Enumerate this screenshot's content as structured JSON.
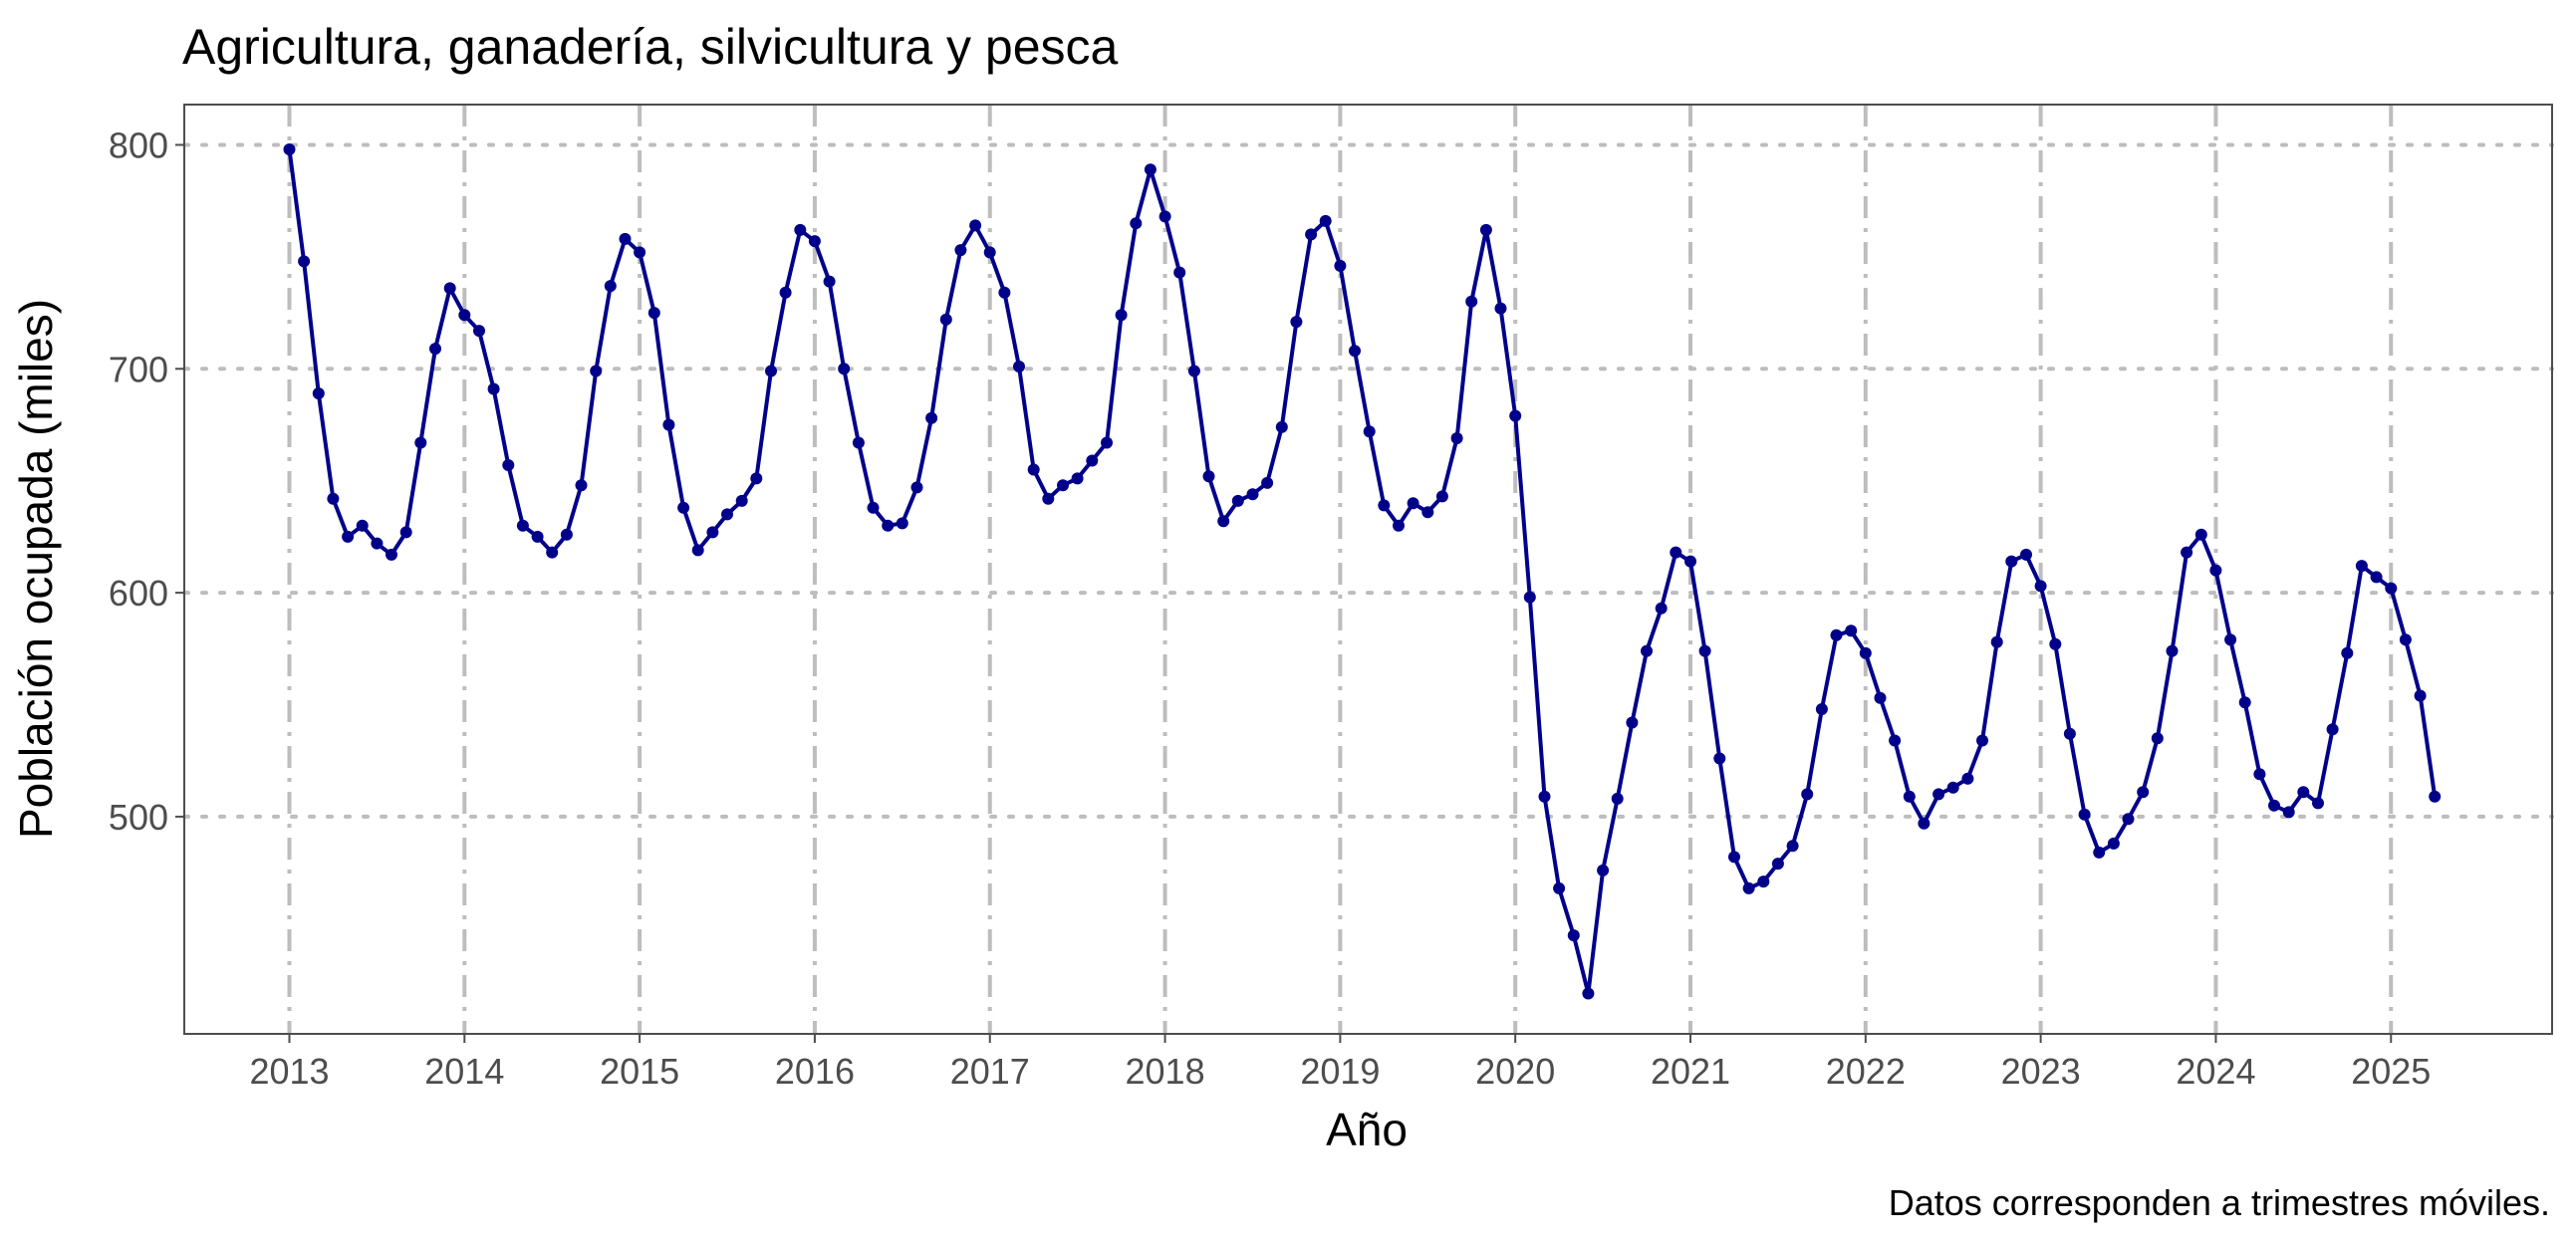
{
  "chart_data": {
    "type": "line",
    "title": "Agricultura, ganadería, silvicultura y pesca",
    "xlabel": "Año",
    "ylabel": "Población ocupada (miles)",
    "caption": "Datos corresponden a trimestres móviles.",
    "x_ticks": [
      "2013",
      "2014",
      "2015",
      "2016",
      "2017",
      "2018",
      "2019",
      "2020",
      "2021",
      "2022",
      "2023",
      "2024",
      "2025"
    ],
    "y_ticks": [
      500,
      600,
      700,
      800
    ],
    "xlim": [
      2012.4,
      2025.92
    ],
    "ylim": [
      403,
      818
    ],
    "grid": true,
    "colors": {
      "series": "#00008B",
      "grid": "#bdbdbd",
      "axis_text": "#4d4d4d"
    },
    "series": [
      {
        "x_start": "2013-01",
        "x_step": "month",
        "values": [
          798,
          748,
          689,
          642,
          625,
          630,
          622,
          617,
          627,
          667,
          709,
          736,
          724,
          717,
          691,
          657,
          630,
          625,
          618,
          626,
          648,
          699,
          737,
          758,
          752,
          725,
          675,
          638,
          619,
          627,
          635,
          641,
          651,
          699,
          734,
          762,
          757,
          739,
          700,
          667,
          638,
          630,
          631,
          647,
          678,
          722,
          753,
          764,
          752,
          734,
          701,
          655,
          642,
          648,
          651,
          659,
          667,
          724,
          765,
          789,
          768,
          743,
          699,
          652,
          632,
          641,
          644,
          649,
          674,
          721,
          760,
          766,
          746,
          708,
          672,
          639,
          630,
          640,
          636,
          643,
          669,
          730,
          762,
          727,
          679,
          598,
          509,
          468,
          447,
          421,
          476,
          508,
          542,
          574,
          593,
          618,
          614,
          574,
          526,
          482,
          468,
          471,
          479,
          487,
          510,
          548,
          581,
          583,
          573,
          553,
          534,
          509,
          497,
          510,
          513,
          517,
          534,
          578,
          614,
          617,
          603,
          577,
          537,
          501,
          484,
          488,
          499,
          511,
          535,
          574,
          618,
          626,
          610,
          579,
          551,
          519,
          505,
          502,
          511,
          506,
          539,
          573,
          612,
          607,
          602,
          579,
          554,
          509
        ]
      }
    ]
  }
}
